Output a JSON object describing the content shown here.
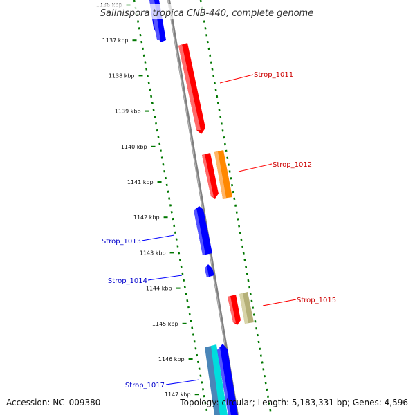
{
  "title": "Salinispora tropica CNB-440, complete genome",
  "accession": "Accession: NC_009380",
  "summary": "Topology: circular; Length: 5,183,331 bp; Genes: 4,596",
  "ticks": [
    {
      "label": "1136 kbp",
      "kb": 1136
    },
    {
      "label": "1137 kbp",
      "kb": 1137
    },
    {
      "label": "1138 kbp",
      "kb": 1138
    },
    {
      "label": "1139 kbp",
      "kb": 1139
    },
    {
      "label": "1140 kbp",
      "kb": 1140
    },
    {
      "label": "1141 kbp",
      "kb": 1141
    },
    {
      "label": "1142 kbp",
      "kb": 1142
    },
    {
      "label": "1143 kbp",
      "kb": 1143
    },
    {
      "label": "1144 kbp",
      "kb": 1144
    },
    {
      "label": "1145 kbp",
      "kb": 1145
    },
    {
      "label": "1146 kbp",
      "kb": 1146
    },
    {
      "label": "1147 kbp",
      "kb": 1147
    }
  ],
  "genes": [
    {
      "name": "Strop_1011",
      "strand": "+",
      "color": "#ff0000",
      "label_color": "#cc0000"
    },
    {
      "name": "Strop_1012",
      "strand": "+",
      "color": "#ff0000",
      "label_color": "#cc0000"
    },
    {
      "name": "Strop_1013",
      "strand": "-",
      "color": "#0000ff",
      "label_color": "#0000cc"
    },
    {
      "name": "Strop_1014",
      "strand": "-",
      "color": "#0000ff",
      "label_color": "#0000cc"
    },
    {
      "name": "Strop_1015",
      "strand": "+",
      "color": "#ff0000",
      "label_color": "#cc0000"
    },
    {
      "name": "Strop_1017",
      "strand": "-",
      "color": "#0000ff",
      "label_color": "#0000cc"
    }
  ],
  "colors": {
    "backbone": "#808080",
    "tick_dots": "#007700",
    "orange_feature": "#ff8800",
    "khaki_feature": "#b5b078",
    "cyan_feature": "#00dddd",
    "steel_feature": "#4a86b8"
  }
}
